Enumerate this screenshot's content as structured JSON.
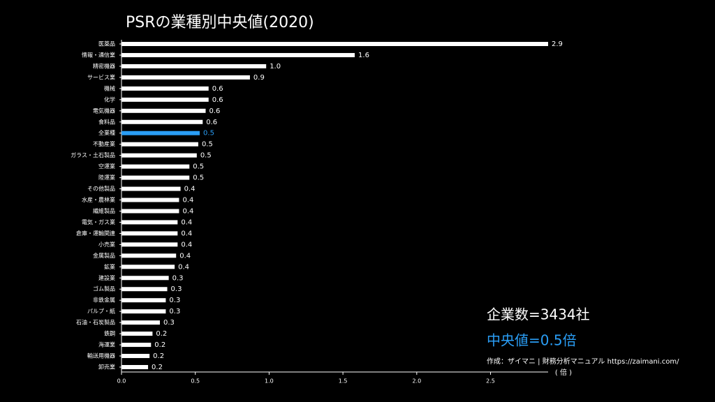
{
  "chart_data": {
    "type": "barh",
    "title": "PSRの業種別中央値(2020)",
    "categories": [
      "医薬品",
      "情報・通信業",
      "精密機器",
      "サービス業",
      "機械",
      "化学",
      "電気機器",
      "食料品",
      "全業種",
      "不動産業",
      "ガラス・土石製品",
      "空運業",
      "陸運業",
      "その他製品",
      "水産・農林業",
      "繊維製品",
      "電気・ガス業",
      "倉庫・運輸関連",
      "小売業",
      "金属製品",
      "鉱業",
      "建設業",
      "ゴム製品",
      "非鉄金属",
      "パルプ・紙",
      "石油・石炭製品",
      "鉄鋼",
      "海運業",
      "輸送用機器",
      "卸売業"
    ],
    "values": [
      2.89,
      1.58,
      0.98,
      0.87,
      0.59,
      0.59,
      0.57,
      0.55,
      0.53,
      0.52,
      0.51,
      0.46,
      0.46,
      0.4,
      0.39,
      0.39,
      0.38,
      0.38,
      0.38,
      0.37,
      0.36,
      0.32,
      0.31,
      0.3,
      0.3,
      0.26,
      0.21,
      0.2,
      0.19,
      0.18
    ],
    "value_labels": [
      "2.9",
      "1.6",
      "1.0",
      "0.9",
      "0.6",
      "0.6",
      "0.6",
      "0.6",
      "0.5",
      "0.5",
      "0.5",
      "0.5",
      "0.5",
      "0.4",
      "0.4",
      "0.4",
      "0.4",
      "0.4",
      "0.4",
      "0.4",
      "0.4",
      "0.3",
      "0.3",
      "0.3",
      "0.3",
      "0.3",
      "0.2",
      "0.2",
      "0.2",
      "0.2"
    ],
    "colors": [
      "#ffffff",
      "#ffffff",
      "#ffffff",
      "#ffffff",
      "#ffffff",
      "#ffffff",
      "#ffffff",
      "#ffffff",
      "#2a9df4",
      "#ffffff",
      "#ffffff",
      "#ffffff",
      "#ffffff",
      "#ffffff",
      "#ffffff",
      "#ffffff",
      "#ffffff",
      "#ffffff",
      "#ffffff",
      "#ffffff",
      "#ffffff",
      "#ffffff",
      "#ffffff",
      "#ffffff",
      "#ffffff",
      "#ffffff",
      "#ffffff",
      "#ffffff",
      "#ffffff",
      "#ffffff"
    ],
    "xlim": [
      0,
      2.89
    ],
    "xticks": [
      {
        "value": 0,
        "label": "0.0"
      },
      0.5,
      {
        "value": 1,
        "label": "1.0"
      },
      1.5,
      {
        "value": 2,
        "label": "2.0"
      },
      2.5
    ],
    "xlabel": "( 倍 )",
    "annotations": [
      {
        "text": "企業数=3434社",
        "color": "#ffffff"
      },
      {
        "text": "中央値=0.5倍",
        "color": "#2a9df4"
      },
      {
        "text": "作成：ザイマニ | 財務分析マニュアル https://zaimani.com/",
        "color": "#ffffff"
      }
    ]
  }
}
